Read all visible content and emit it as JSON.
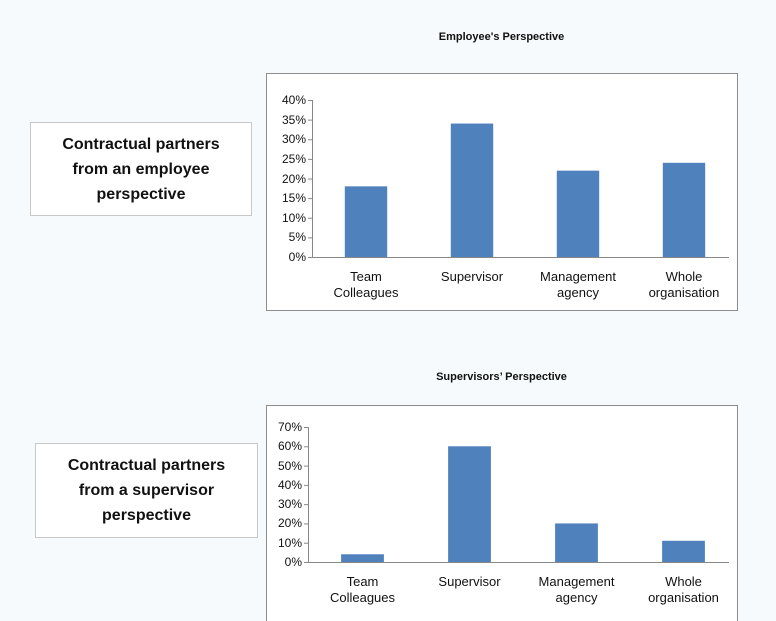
{
  "chart_data": [
    {
      "type": "bar",
      "title": "Employee's Perspective",
      "annotation": "Contractual partners from an employee perspective",
      "categories": [
        "Team Colleagues",
        "Supervisor",
        "Management agency",
        "Whole organisation"
      ],
      "values": [
        18,
        34,
        22,
        24
      ],
      "color": "#4f81bd",
      "ylim": [
        0,
        40
      ],
      "yticks": [
        {
          "value": 0,
          "label": "0%"
        },
        {
          "value": 5,
          "label": "5%"
        },
        {
          "value": 10,
          "label": "10%"
        },
        {
          "value": 15,
          "label": "15%"
        },
        {
          "value": 20,
          "label": "20%"
        },
        {
          "value": 25,
          "label": "25%"
        },
        {
          "value": 30,
          "label": "30%"
        },
        {
          "value": 35,
          "label": "35%"
        },
        {
          "value": 40,
          "label": "40%"
        }
      ],
      "grid": false
    },
    {
      "type": "bar",
      "title": "Supervisors’ Perspective",
      "annotation": "Contractual partners from a supervisor perspective",
      "categories": [
        "Team Colleagues",
        "Supervisor",
        "Management agency",
        "Whole organisation"
      ],
      "values": [
        4,
        60,
        20,
        11
      ],
      "color": "#4f81bd",
      "ylim": [
        0,
        70
      ],
      "yticks": [
        {
          "value": 0,
          "label": "0%"
        },
        {
          "value": 10,
          "label": "10%"
        },
        {
          "value": 20,
          "label": "20%"
        },
        {
          "value": 30,
          "label": "30%"
        },
        {
          "value": 40,
          "label": "40%"
        },
        {
          "value": 50,
          "label": "50%"
        },
        {
          "value": 60,
          "label": "60%"
        },
        {
          "value": 70,
          "label": "70%"
        }
      ],
      "grid": false
    }
  ]
}
